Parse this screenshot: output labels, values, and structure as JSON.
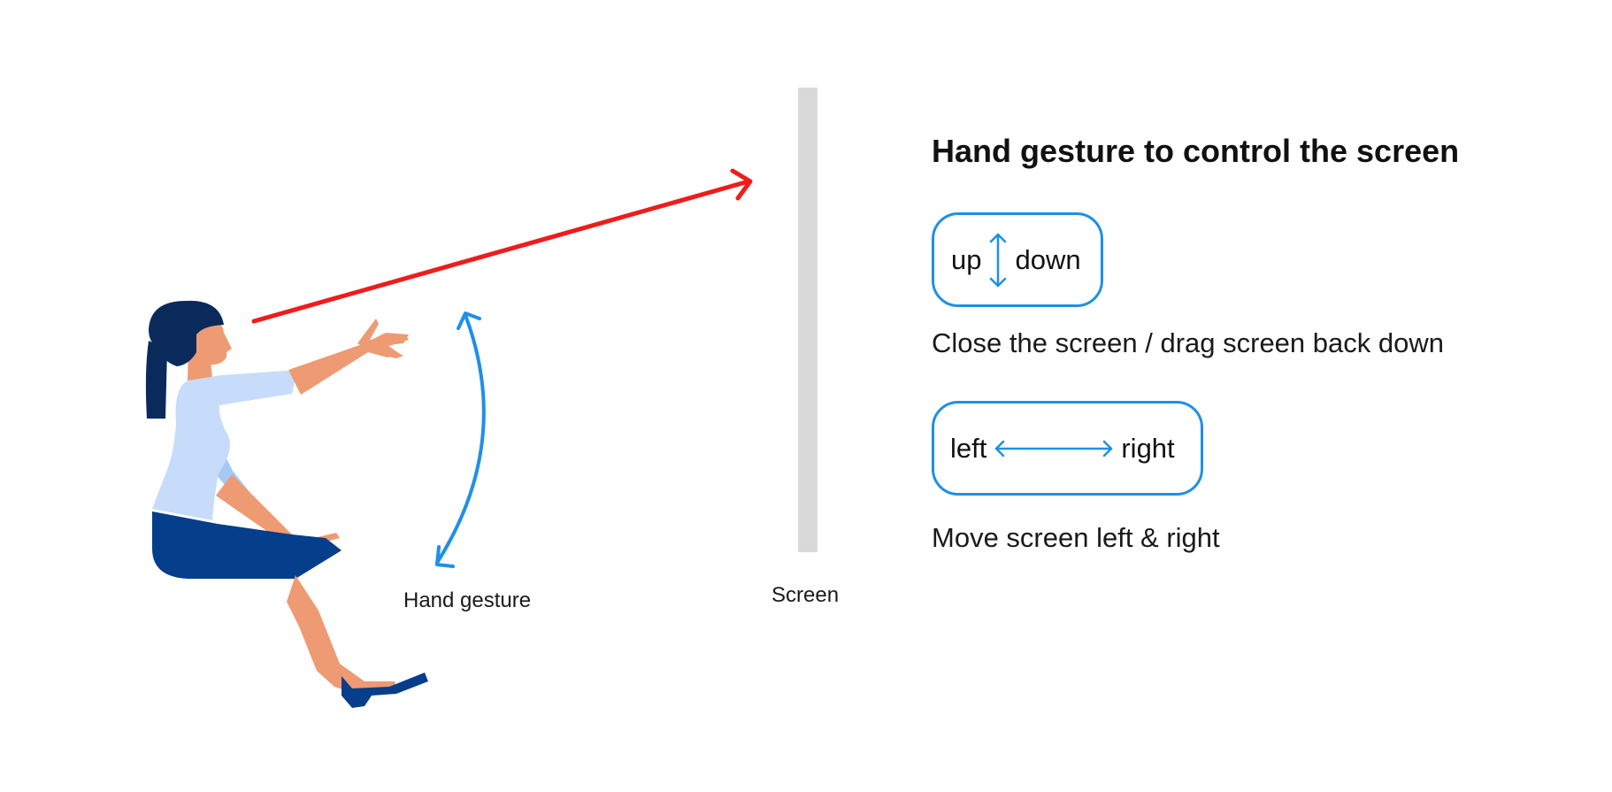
{
  "diagram": {
    "labels": {
      "hand_gesture": "Hand gesture",
      "screen": "Screen"
    },
    "panel": {
      "title": "Hand gesture to control the screen",
      "gestures": [
        {
          "start": "up",
          "end": "down",
          "icon": "up-down-arrow-icon",
          "description": "Close the screen / drag screen back down"
        },
        {
          "start": "left",
          "end": "right",
          "icon": "left-right-arrow-icon",
          "description": "Move screen left & right"
        }
      ]
    },
    "colors": {
      "accent_blue": "#1e90e6",
      "sight_line_red": "#ee1c1c",
      "screen_gray": "#d9d9d9",
      "hair_navy": "#0a2a5c",
      "skirt_blue": "#053e8a",
      "shirt_light_blue": "#c7dcfa",
      "skin": "#ee9a72"
    }
  }
}
